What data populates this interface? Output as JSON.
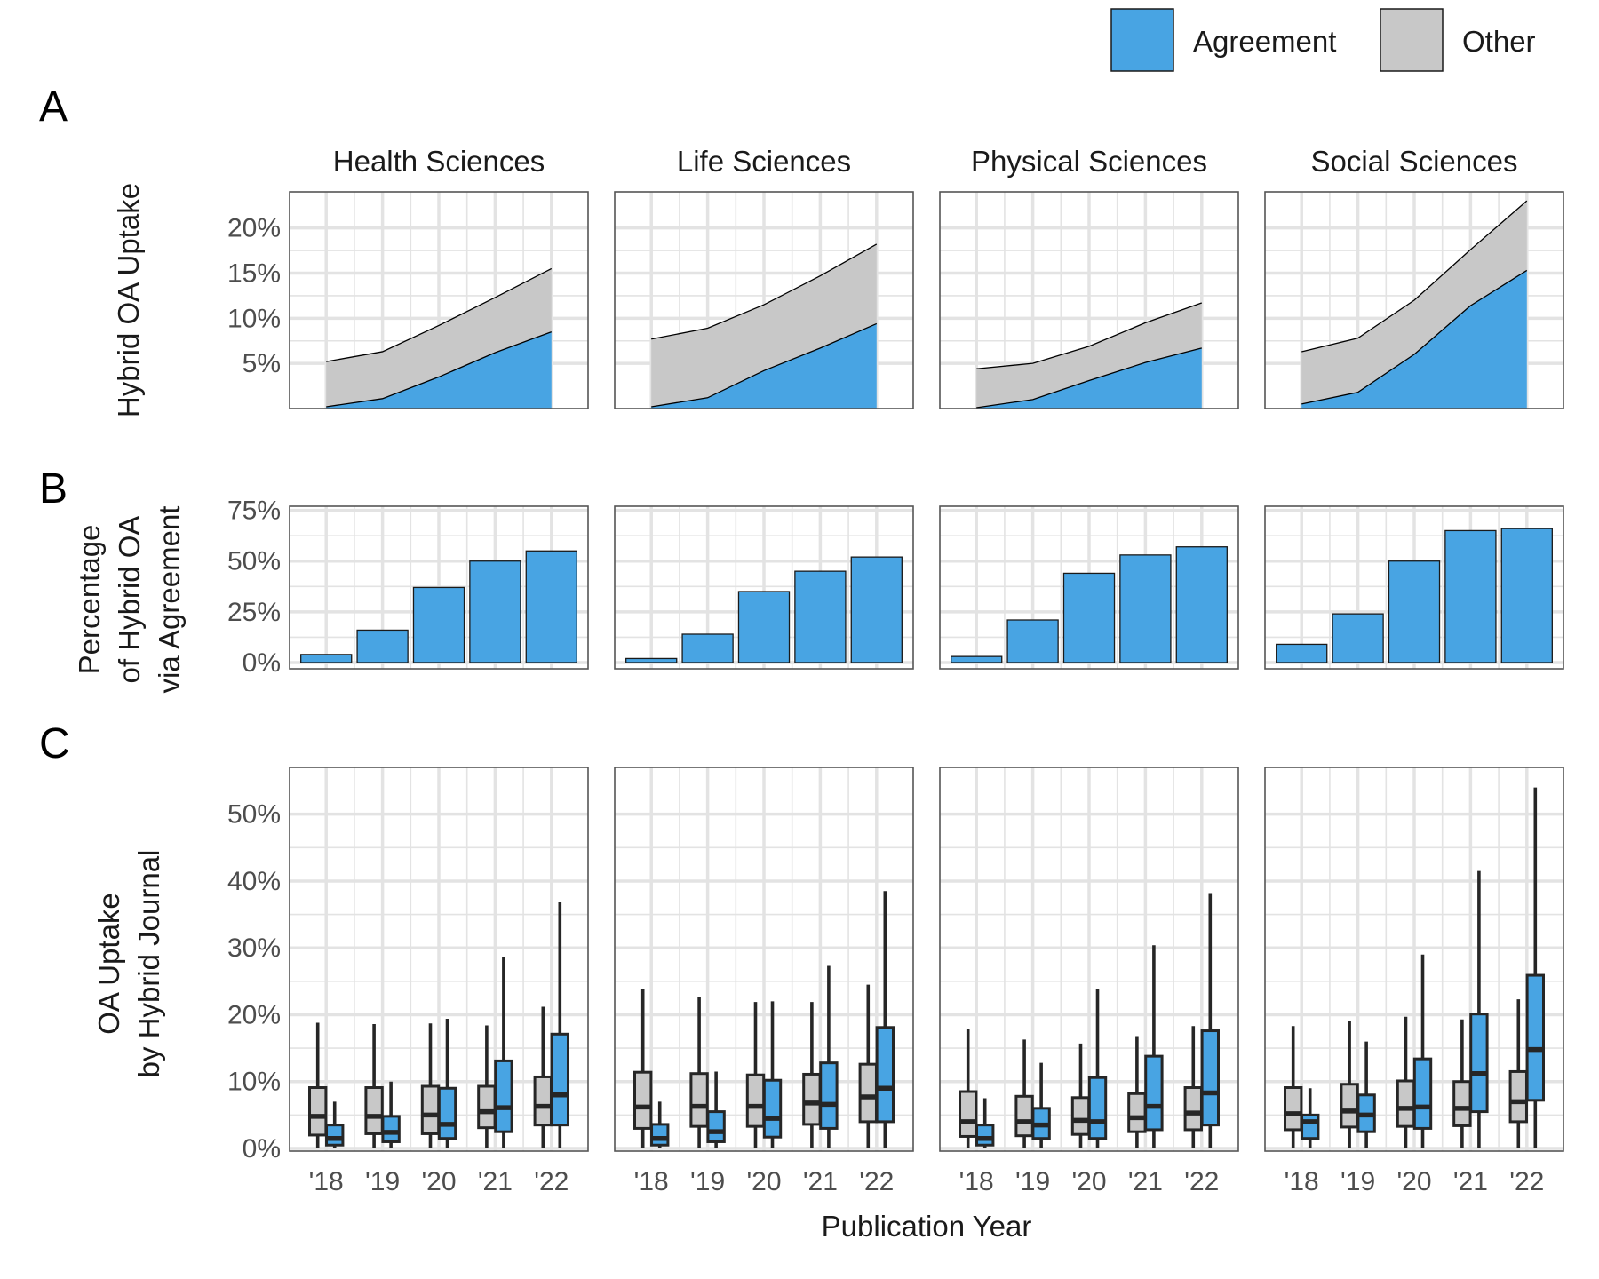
{
  "legend": [
    {
      "label": "Agreement",
      "color": "#48A4E3"
    },
    {
      "label": "Other",
      "color": "#C8C8C8"
    }
  ],
  "panel_tags": [
    "A",
    "B",
    "C"
  ],
  "facets": [
    "Health Sciences",
    "Life Sciences",
    "Physical Sciences",
    "Social Sciences"
  ],
  "xlabel": "Publication Year",
  "chart_data": [
    {
      "type": "area",
      "panel": "A",
      "ylabel": "Hybrid OA Uptake",
      "x": [
        2018,
        2019,
        2020,
        2021,
        2022
      ],
      "ylim": [
        0,
        0.24
      ],
      "y_ticks": [
        0.05,
        0.1,
        0.15,
        0.2
      ],
      "y_tick_labels": [
        "5%",
        "10%",
        "15%",
        "20%"
      ],
      "stacked": true,
      "facets": [
        {
          "facet": "Health Sciences",
          "series": [
            {
              "name": "Agreement",
              "values": [
                0.002,
                0.011,
                0.035,
                0.062,
                0.085
              ]
            },
            {
              "name": "Other",
              "values": [
                0.05,
                0.052,
                0.057,
                0.061,
                0.07
              ]
            }
          ]
        },
        {
          "facet": "Life Sciences",
          "series": [
            {
              "name": "Agreement",
              "values": [
                0.002,
                0.012,
                0.042,
                0.067,
                0.094
              ]
            },
            {
              "name": "Other",
              "values": [
                0.075,
                0.077,
                0.073,
                0.08,
                0.088
              ]
            }
          ]
        },
        {
          "facet": "Physical Sciences",
          "series": [
            {
              "name": "Agreement",
              "values": [
                0.001,
                0.01,
                0.031,
                0.051,
                0.067
              ]
            },
            {
              "name": "Other",
              "values": [
                0.043,
                0.04,
                0.038,
                0.044,
                0.05
              ]
            }
          ]
        },
        {
          "facet": "Social Sciences",
          "series": [
            {
              "name": "Agreement",
              "values": [
                0.005,
                0.018,
                0.06,
                0.114,
                0.153
              ]
            },
            {
              "name": "Other",
              "values": [
                0.058,
                0.06,
                0.06,
                0.062,
                0.077
              ]
            }
          ]
        }
      ]
    },
    {
      "type": "bar",
      "panel": "B",
      "ylabel": [
        "Percentage",
        "of Hybrid OA",
        "via Agreement"
      ],
      "categories": [
        "2018",
        "2019",
        "2020",
        "2021",
        "2022"
      ],
      "ylim": [
        0,
        0.77
      ],
      "y_ticks": [
        0,
        0.25,
        0.5,
        0.75
      ],
      "y_tick_labels": [
        "0%",
        "25%",
        "50%",
        "75%"
      ],
      "facets": [
        {
          "facet": "Health Sciences",
          "values": [
            0.04,
            0.16,
            0.37,
            0.5,
            0.55
          ]
        },
        {
          "facet": "Life Sciences",
          "values": [
            0.02,
            0.14,
            0.35,
            0.45,
            0.52
          ]
        },
        {
          "facet": "Physical Sciences",
          "values": [
            0.03,
            0.21,
            0.44,
            0.53,
            0.57
          ]
        },
        {
          "facet": "Social Sciences",
          "values": [
            0.09,
            0.24,
            0.5,
            0.65,
            0.66
          ]
        }
      ]
    },
    {
      "type": "box",
      "panel": "C",
      "ylabel": [
        "OA Uptake",
        "by Hybrid Journal"
      ],
      "categories": [
        "'18",
        "'19",
        "'20",
        "'21",
        "'22"
      ],
      "ylim": [
        0,
        0.57
      ],
      "y_ticks": [
        0,
        0.1,
        0.2,
        0.3,
        0.4,
        0.5
      ],
      "y_tick_labels": [
        "0%",
        "10%",
        "20%",
        "30%",
        "40%",
        "50%"
      ],
      "series_names": [
        "Other",
        "Agreement"
      ],
      "facets": [
        {
          "facet": "Health Sciences",
          "boxes": [
            [
              [
                0.0,
                0.02,
                0.048,
                0.091,
                0.188
              ],
              [
                0.0,
                0.005,
                0.015,
                0.035,
                0.07
              ]
            ],
            [
              [
                0.0,
                0.022,
                0.048,
                0.091,
                0.186
              ],
              [
                0.0,
                0.01,
                0.024,
                0.048,
                0.1
              ]
            ],
            [
              [
                0.0,
                0.022,
                0.05,
                0.093,
                0.187
              ],
              [
                0.0,
                0.015,
                0.036,
                0.09,
                0.194
              ]
            ],
            [
              [
                0.0,
                0.031,
                0.055,
                0.093,
                0.184
              ],
              [
                0.0,
                0.025,
                0.061,
                0.131,
                0.286
              ]
            ],
            [
              [
                0.0,
                0.035,
                0.063,
                0.107,
                0.212
              ],
              [
                0.0,
                0.035,
                0.08,
                0.171,
                0.368
              ]
            ]
          ]
        },
        {
          "facet": "Life Sciences",
          "boxes": [
            [
              [
                0.0,
                0.03,
                0.062,
                0.114,
                0.238
              ],
              [
                0.0,
                0.005,
                0.015,
                0.036,
                0.07
              ]
            ],
            [
              [
                0.0,
                0.033,
                0.063,
                0.112,
                0.227
              ],
              [
                0.0,
                0.01,
                0.025,
                0.055,
                0.115
              ]
            ],
            [
              [
                0.0,
                0.033,
                0.063,
                0.11,
                0.219
              ],
              [
                0.0,
                0.017,
                0.045,
                0.102,
                0.22
              ]
            ],
            [
              [
                0.0,
                0.036,
                0.068,
                0.111,
                0.219
              ],
              [
                0.0,
                0.03,
                0.066,
                0.128,
                0.273
              ]
            ],
            [
              [
                0.0,
                0.04,
                0.077,
                0.126,
                0.245
              ],
              [
                0.0,
                0.04,
                0.09,
                0.181,
                0.385
              ]
            ]
          ]
        },
        {
          "facet": "Physical Sciences",
          "boxes": [
            [
              [
                0.0,
                0.018,
                0.04,
                0.085,
                0.178
              ],
              [
                0.0,
                0.005,
                0.015,
                0.035,
                0.075
              ]
            ],
            [
              [
                0.0,
                0.019,
                0.04,
                0.078,
                0.163
              ],
              [
                0.0,
                0.015,
                0.035,
                0.06,
                0.128
              ]
            ],
            [
              [
                0.0,
                0.021,
                0.042,
                0.076,
                0.157
              ],
              [
                0.0,
                0.015,
                0.04,
                0.106,
                0.239
              ]
            ],
            [
              [
                0.0,
                0.025,
                0.046,
                0.082,
                0.168
              ],
              [
                0.0,
                0.028,
                0.063,
                0.138,
                0.304
              ]
            ],
            [
              [
                0.0,
                0.028,
                0.053,
                0.091,
                0.183
              ],
              [
                0.0,
                0.035,
                0.083,
                0.176,
                0.382
              ]
            ]
          ]
        },
        {
          "facet": "Social Sciences",
          "boxes": [
            [
              [
                0.0,
                0.028,
                0.052,
                0.091,
                0.183
              ],
              [
                0.0,
                0.015,
                0.04,
                0.05,
                0.09
              ]
            ],
            [
              [
                0.0,
                0.032,
                0.056,
                0.096,
                0.19
              ],
              [
                0.0,
                0.025,
                0.05,
                0.08,
                0.16
              ]
            ],
            [
              [
                0.0,
                0.033,
                0.06,
                0.101,
                0.197
              ],
              [
                0.0,
                0.03,
                0.062,
                0.134,
                0.29
              ]
            ],
            [
              [
                0.0,
                0.034,
                0.06,
                0.1,
                0.193
              ],
              [
                0.0,
                0.055,
                0.112,
                0.201,
                0.415
              ]
            ],
            [
              [
                0.0,
                0.04,
                0.07,
                0.115,
                0.223
              ],
              [
                0.0,
                0.072,
                0.148,
                0.259,
                0.54
              ]
            ]
          ]
        }
      ]
    }
  ]
}
